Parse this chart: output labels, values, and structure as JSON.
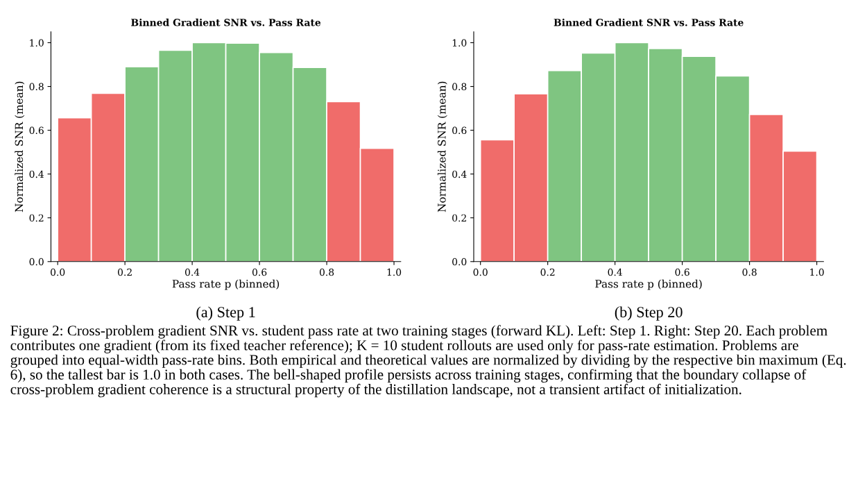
{
  "chart_data": [
    {
      "type": "histogram",
      "title": "Binned Gradient SNR vs. Pass Rate",
      "xlabel": "Pass rate p (binned)",
      "ylabel": "Normalized SNR (mean)",
      "bins": [
        0,
        0.1,
        0.2,
        0.3,
        0.4,
        0.5,
        0.6,
        0.7,
        0.8,
        0.9,
        1.0
      ],
      "values": [
        0.657,
        0.769,
        0.89,
        0.965,
        1.0,
        0.998,
        0.955,
        0.887,
        0.731,
        0.517
      ],
      "colors": [
        "#f06c6a",
        "#f06c6a",
        "#7fc581",
        "#7fc581",
        "#7fc581",
        "#7fc581",
        "#7fc581",
        "#7fc581",
        "#f06c6a",
        "#f06c6a"
      ],
      "xlim": [
        -0.02,
        1.02
      ],
      "ylim": [
        0,
        1.05
      ],
      "xticks": [
        {
          "value": 0,
          "label": "0.0"
        },
        {
          "value": 0.2,
          "label": "0.2"
        },
        {
          "value": 0.4,
          "label": "0.4"
        },
        {
          "value": 0.6,
          "label": "0.6"
        },
        {
          "value": 0.8,
          "label": "0.8"
        },
        {
          "value": 1.0,
          "label": "1.0"
        }
      ],
      "yticks": [
        {
          "value": 0,
          "label": "0.0"
        },
        {
          "value": 0.2,
          "label": "0.2"
        },
        {
          "value": 0.4,
          "label": "0.4"
        },
        {
          "value": 0.6,
          "label": "0.6"
        },
        {
          "value": 0.8,
          "label": "0.8"
        },
        {
          "value": 1.0,
          "label": "1.0"
        }
      ],
      "annotations": [
        "(a) Step 1"
      ]
    },
    {
      "type": "histogram",
      "title": "Binned Gradient SNR vs. Pass Rate",
      "xlabel": "Pass rate p (binned)",
      "ylabel": "Normalized SNR (mean)",
      "bins": [
        0,
        0.1,
        0.2,
        0.3,
        0.4,
        0.5,
        0.6,
        0.7,
        0.8,
        0.9,
        1.0
      ],
      "values": [
        0.556,
        0.766,
        0.873,
        0.953,
        1.0,
        0.973,
        0.938,
        0.848,
        0.672,
        0.505
      ],
      "colors": [
        "#f06c6a",
        "#f06c6a",
        "#7fc581",
        "#7fc581",
        "#7fc581",
        "#7fc581",
        "#7fc581",
        "#7fc581",
        "#f06c6a",
        "#f06c6a"
      ],
      "xlim": [
        -0.02,
        1.02
      ],
      "ylim": [
        0,
        1.05
      ],
      "xticks": [
        {
          "value": 0,
          "label": "0.0"
        },
        {
          "value": 0.2,
          "label": "0.2"
        },
        {
          "value": 0.4,
          "label": "0.4"
        },
        {
          "value": 0.6,
          "label": "0.6"
        },
        {
          "value": 0.8,
          "label": "0.8"
        },
        {
          "value": 1.0,
          "label": "1.0"
        }
      ],
      "yticks": [
        {
          "value": 0,
          "label": "0.0"
        },
        {
          "value": 0.2,
          "label": "0.2"
        },
        {
          "value": 0.4,
          "label": "0.4"
        },
        {
          "value": 0.6,
          "label": "0.6"
        },
        {
          "value": 0.8,
          "label": "0.8"
        },
        {
          "value": 1.0,
          "label": "1.0"
        }
      ],
      "annotations": [
        "(b) Step 20",
        "Figure 2: Cross-problem gradient SNR vs. student pass rate at two training stages (forward KL). Left: Step 1. Right: Step 20. Each problem contributes one gradient (from its fixed teacher reference); K = 10 student rollouts are used only for pass-rate estimation. Problems are grouped into equal-width pass-rate bins. Both empirical and theoretical values are normalized by dividing by the respective bin maximum (Eq. 6), so the tallest bar is 1.0 in both cases. The bell-shaped profile persists across training stages, confirming that the boundary collapse of cross-problem gradient coherence is a structural property of the distillation landscape, not a transient artifact of initialization."
      ]
    }
  ]
}
